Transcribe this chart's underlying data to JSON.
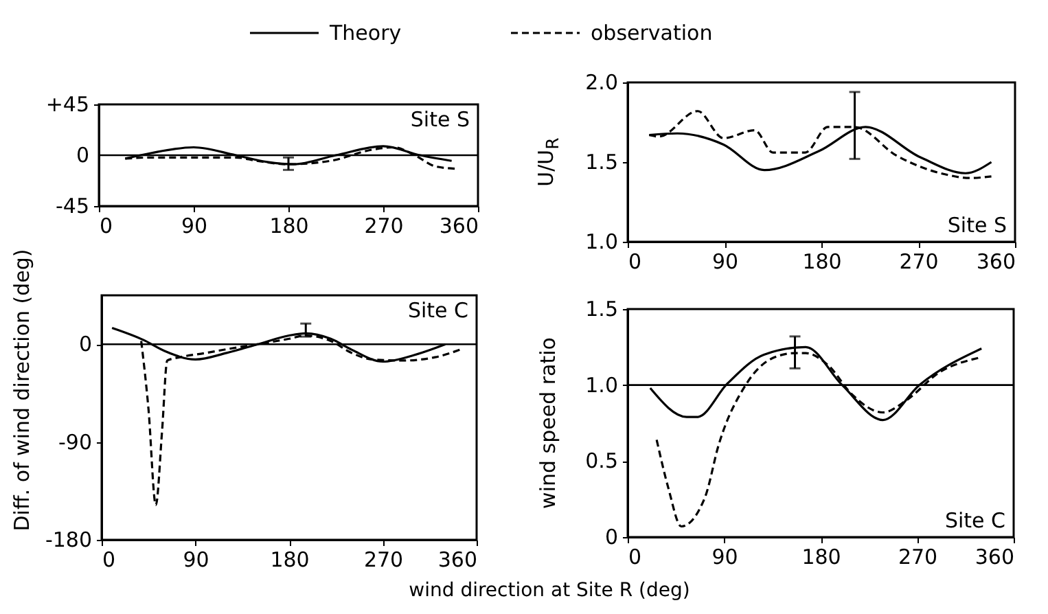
{
  "chart_data": [
    {
      "type": "line",
      "ylim": [
        -45,
        45
      ],
      "yticks": [
        {
          "value": 45,
          "label": "+45"
        },
        0,
        -45
      ],
      "xlim": [
        0,
        360
      ],
      "xticks": [
        0,
        90,
        180,
        270,
        360
      ],
      "legend": "top",
      "annotations": [
        "Site S"
      ],
      "ref_lines": [
        {
          "axis": "y",
          "value": 0
        }
      ],
      "series": [
        {
          "name": "Theory",
          "color": "#000000",
          "line_style": "solid",
          "x": [
            25,
            50,
            90,
            130,
            160,
            185,
            225,
            270,
            305,
            335
          ],
          "values": [
            -3,
            2,
            7,
            0,
            -6,
            -8,
            0,
            8,
            0,
            -5
          ]
        },
        {
          "name": "observation",
          "color": "#000000",
          "line_style": "dashed",
          "x": [
            25,
            50,
            90,
            130,
            150,
            180,
            220,
            260,
            280,
            300,
            320,
            340
          ],
          "values": [
            -3,
            -2,
            -2,
            -2,
            -5,
            -8,
            -5,
            5,
            7,
            0,
            -10,
            -12
          ],
          "errors": [
            null,
            null,
            null,
            null,
            null,
            [
              -13,
              -2
            ],
            null,
            null,
            null,
            null,
            null,
            null
          ]
        }
      ]
    },
    {
      "type": "line",
      "ylim": [
        1.0,
        2.0
      ],
      "yticks": [
        {
          "value": 1.0,
          "label": "1.0"
        },
        1.5,
        {
          "value": 2.0,
          "label": "2.0"
        }
      ],
      "xlim": [
        0,
        360
      ],
      "xticks": [
        0,
        90,
        180,
        270,
        360
      ],
      "ylabel": "U/U$_{R}$",
      "annotations": [
        "Site S"
      ],
      "series": [
        {
          "color": "#000000",
          "line_style": "solid",
          "x": [
            20,
            46,
            89,
            127,
            178,
            221,
            272,
            314,
            338
          ],
          "values": [
            1.67,
            1.68,
            1.61,
            1.45,
            1.57,
            1.72,
            1.53,
            1.43,
            1.5
          ]
        },
        {
          "color": "#000000",
          "line_style": "dashed",
          "x": [
            20,
            29,
            65,
            89,
            118,
            135,
            165,
            186,
            211,
            250,
            297,
            318,
            338
          ],
          "values": [
            1.67,
            1.66,
            1.82,
            1.65,
            1.7,
            1.56,
            1.56,
            1.72,
            1.72,
            1.54,
            1.42,
            1.4,
            1.41
          ],
          "errors": [
            null,
            null,
            null,
            null,
            null,
            null,
            null,
            null,
            [
              1.52,
              1.94
            ],
            null,
            null,
            null,
            null
          ]
        }
      ]
    },
    {
      "type": "line",
      "ylim": [
        -180,
        45
      ],
      "yticks": [
        0,
        -90,
        -180
      ],
      "xlim": [
        0,
        360
      ],
      "xticks": [
        0,
        90,
        180,
        270,
        360
      ],
      "ylabel": "Diff. of wind direction (deg)",
      "xlabel": "wind direction at Site R (deg)",
      "annotations": [
        "Site C"
      ],
      "ref_lines": [
        {
          "axis": "y",
          "value": 0
        }
      ],
      "series": [
        {
          "color": "#000000",
          "line_style": "solid",
          "x": [
            10,
            40,
            60,
            90,
            120,
            150,
            180,
            196,
            220,
            240,
            270,
            300,
            330
          ],
          "values": [
            15,
            4,
            -6,
            -14,
            -8,
            0,
            8,
            10,
            5,
            -5,
            -16,
            -10,
            0
          ]
        },
        {
          "color": "#000000",
          "line_style": "dashed",
          "x": [
            38,
            45,
            52,
            58,
            63,
            75,
            100,
            130,
            150,
            180,
            196,
            220,
            240,
            260,
            290,
            320,
            347
          ],
          "values": [
            3,
            -60,
            -148,
            -80,
            -15,
            -12,
            -8,
            -3,
            0,
            5,
            8,
            3,
            -8,
            -14,
            -15,
            -12,
            -4
          ],
          "errors": [
            null,
            null,
            null,
            null,
            null,
            null,
            null,
            null,
            null,
            null,
            [
              7,
              19
            ],
            null,
            null,
            null,
            null,
            null,
            null
          ]
        }
      ]
    },
    {
      "type": "line",
      "ylim": [
        0,
        1.5
      ],
      "yticks": [
        0,
        0.5,
        {
          "value": 1.0,
          "label": "1.0"
        },
        1.5
      ],
      "xlim": [
        0,
        360
      ],
      "xticks": [
        0,
        90,
        180,
        270,
        360
      ],
      "ylabel": "wind speed ratio",
      "annotations": [
        "Site C"
      ],
      "ref_lines": [
        {
          "axis": "y",
          "value": 1.0
        }
      ],
      "series": [
        {
          "color": "#000000",
          "line_style": "solid",
          "x": [
            21,
            55,
            65,
            93,
            127,
            166,
            200,
            238,
            272,
            330
          ],
          "values": [
            0.98,
            0.79,
            0.79,
            1.01,
            1.2,
            1.25,
            1.0,
            0.77,
            1.0,
            1.24
          ]
        },
        {
          "color": "#000000",
          "line_style": "dashed",
          "x": [
            27,
            38,
            50,
            72,
            85,
            110,
            136,
            156,
            166,
            187,
            209,
            238,
            260,
            290,
            328
          ],
          "values": [
            0.64,
            0.32,
            0.07,
            0.26,
            0.61,
            1.0,
            1.18,
            1.21,
            1.21,
            1.13,
            0.94,
            0.82,
            0.9,
            1.08,
            1.18
          ],
          "errors": [
            null,
            null,
            null,
            null,
            null,
            null,
            null,
            [
              1.11,
              1.32
            ],
            null,
            null,
            null,
            null,
            null,
            null,
            null
          ]
        }
      ]
    }
  ]
}
